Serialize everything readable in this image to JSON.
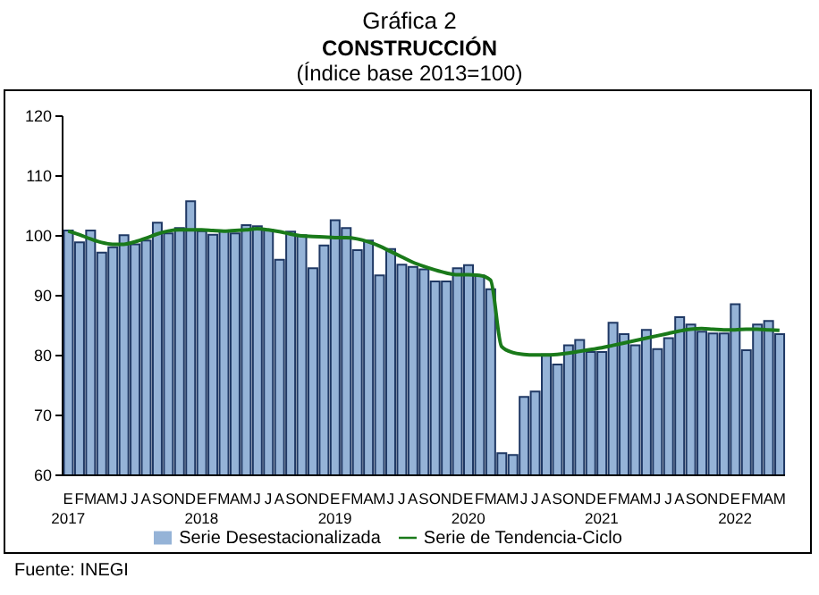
{
  "chart_data": {
    "type": "bar",
    "title": "Gráfica 2",
    "subtitle": "CONSTRUCCIÓN",
    "annotations": [
      "(Índice base 2013=100)",
      "Fuente: INEGI"
    ],
    "categories": [
      "E\n2017",
      "F",
      "M",
      "A",
      "M",
      "J",
      "J",
      "A",
      "S",
      "O",
      "N",
      "D",
      "E\n2018",
      "F",
      "M",
      "A",
      "M",
      "J",
      "J",
      "A",
      "S",
      "O",
      "N",
      "D",
      "E\n2019",
      "F",
      "M",
      "A",
      "M",
      "J",
      "J",
      "A",
      "S",
      "O",
      "N",
      "D",
      "E\n2020",
      "F",
      "M",
      "A",
      "M",
      "J",
      "J",
      "A",
      "S",
      "O",
      "N",
      "D",
      "E\n2021",
      "F",
      "M",
      "A",
      "M",
      "J",
      "J",
      "A",
      "S",
      "O",
      "N",
      "D",
      "E\n2022",
      "F",
      "M",
      "A",
      "M"
    ],
    "series": [
      {
        "name": "Serie Desestacionalizada",
        "color": "#95b3d7",
        "values": [
          100.9,
          98.9,
          100.9,
          97.2,
          98.1,
          100.1,
          98.6,
          99.2,
          102.2,
          100.4,
          101.3,
          105.8,
          100.8,
          100.2,
          100.8,
          100.4,
          101.8,
          101.6,
          101.0,
          96.0,
          100.7,
          100.1,
          94.6,
          98.4,
          102.6,
          101.3,
          97.6,
          99.2,
          93.4,
          97.8,
          95.2,
          94.8,
          94.4,
          92.4,
          92.4,
          94.6,
          95.1,
          93.4,
          91.1,
          63.7,
          63.4,
          73.1,
          74.0,
          80.2,
          78.5,
          81.7,
          82.6,
          80.6,
          80.6,
          85.5,
          83.6,
          81.7,
          84.3,
          81.1,
          82.9,
          86.4,
          85.2,
          84.0,
          83.7,
          83.7,
          88.6,
          80.9,
          85.2,
          85.8,
          83.6
        ]
      },
      {
        "name": "Serie de Tendencia-Ciclo",
        "type": "line",
        "color": "#1a7a1a",
        "values": [
          100.8,
          100.2,
          99.5,
          98.9,
          98.6,
          98.6,
          99.0,
          99.6,
          100.3,
          100.8,
          101.0,
          101.0,
          101.0,
          100.9,
          100.8,
          100.9,
          101.0,
          101.2,
          101.0,
          100.7,
          100.3,
          100.0,
          99.9,
          99.8,
          99.7,
          99.7,
          99.5,
          99.0,
          98.3,
          97.4,
          96.5,
          95.6,
          94.9,
          94.3,
          93.8,
          93.5,
          93.5,
          93.4,
          92.6,
          81.5,
          80.5,
          80.2,
          80.1,
          80.1,
          80.2,
          80.4,
          80.7,
          81.0,
          81.3,
          81.7,
          82.1,
          82.5,
          82.9,
          83.3,
          83.7,
          84.1,
          84.4,
          84.5,
          84.4,
          84.3,
          84.3,
          84.4,
          84.4,
          84.3,
          84.2
        ]
      }
    ],
    "ylim": [
      60,
      120
    ],
    "yticks": [
      60,
      70,
      80,
      90,
      100,
      110,
      120
    ],
    "grid": false,
    "legend": "bottom",
    "marker": "none"
  }
}
